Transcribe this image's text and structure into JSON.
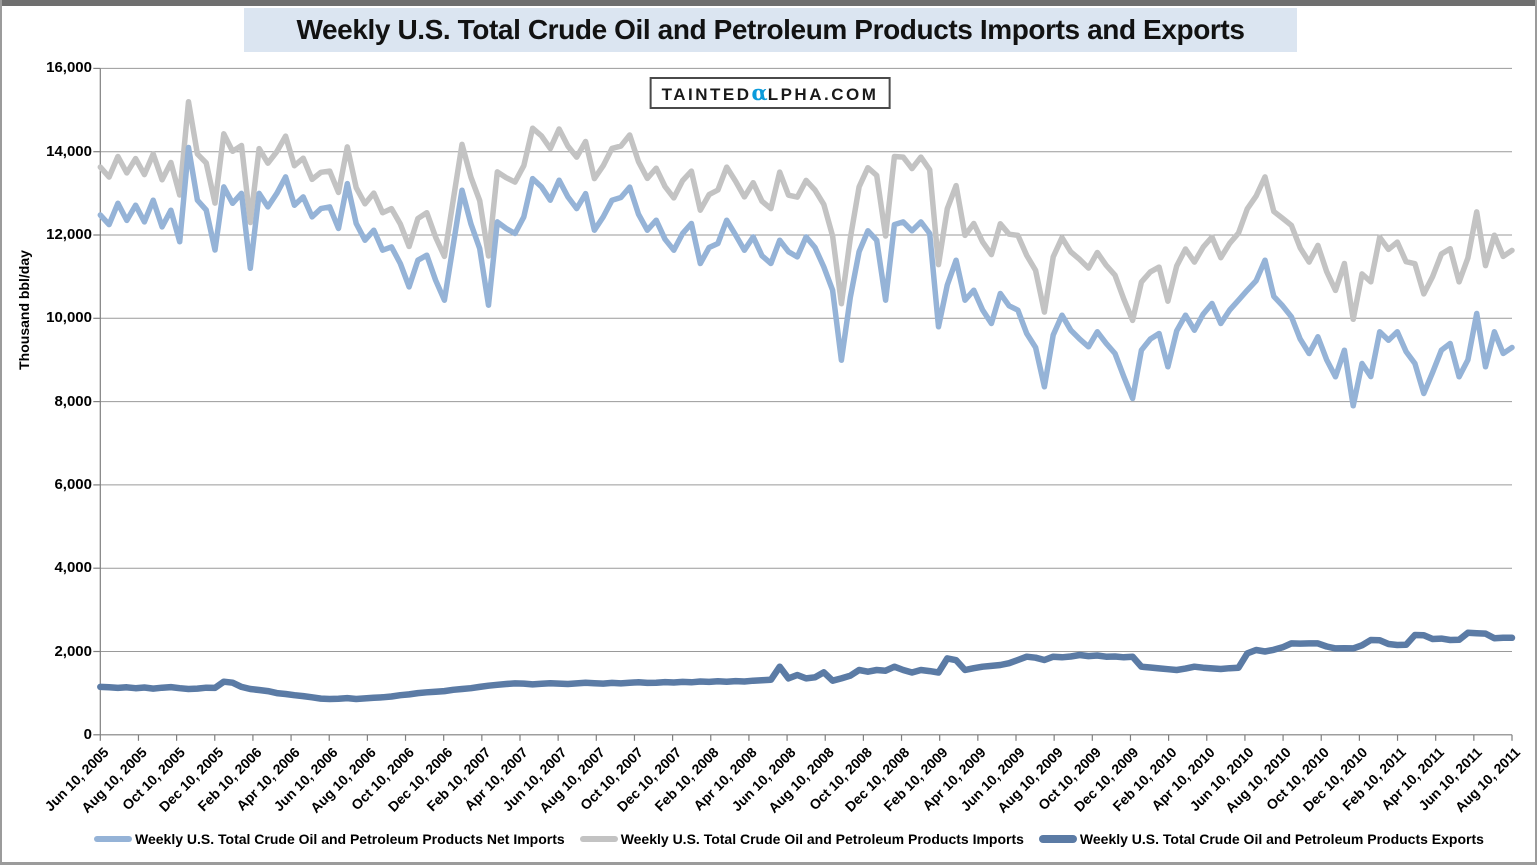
{
  "title": "Weekly U.S. Total Crude Oil and Petroleum Products Imports and Exports",
  "logo": {
    "prefix": "TAINTED",
    "alpha": "α",
    "suffix": "LPHA.COM",
    "alpha_color": "#0b9bdb"
  },
  "colors": {
    "title_band_bg": "#dbe5f1",
    "gridline": "#9a9a9a",
    "axis": "#7f7f7f",
    "frame": "#9b9b9b",
    "background": "#ffffff"
  },
  "chart_data": {
    "type": "line",
    "title": "Weekly U.S. Total Crude Oil and Petroleum Products Imports and Exports",
    "xlabel": "",
    "ylabel": "Thousand bbl/day",
    "ylim": [
      0,
      16000
    ],
    "ytick_step": 2000,
    "yticks": [
      "0",
      "2,000",
      "4,000",
      "6,000",
      "8,000",
      "10,000",
      "12,000",
      "14,000",
      "16,000"
    ],
    "grid": true,
    "legend_position": "bottom",
    "x_start": "Jun 10, 2005",
    "x_end": "Aug 10, 2011",
    "x_sampling": "values estimated every 2 weeks",
    "xtick_labels": [
      "Jun 10, 2005",
      "Aug 10, 2005",
      "Oct 10, 2005",
      "Dec 10, 2005",
      "Feb 10, 2006",
      "Apr 10, 2006",
      "Jun 10, 2006",
      "Aug 10, 2006",
      "Oct 10, 2006",
      "Dec 10, 2006",
      "Feb 10, 2007",
      "Apr 10, 2007",
      "Jun 10, 2007",
      "Aug 10, 2007",
      "Oct 10, 2007",
      "Dec 10, 2007",
      "Feb 10, 2008",
      "Apr 10, 2008",
      "Jun 10, 2008",
      "Aug 10, 2008",
      "Oct 10, 2008",
      "Dec 10, 2008",
      "Feb 10, 2009",
      "Apr 10, 2009",
      "Jun 10, 2009",
      "Aug 10, 2009",
      "Oct 10, 2009",
      "Dec 10, 2009",
      "Feb 10, 2010",
      "Apr 10, 2010",
      "Jun 10, 2010",
      "Aug 10, 2010",
      "Oct 10, 2010",
      "Dec 10, 2010",
      "Feb 10, 2011",
      "Apr 10, 2011",
      "Jun 10, 2011",
      "Aug 10, 2011"
    ],
    "series": [
      {
        "name": "Weekly U.S. Total Crude Oil and Petroleum Products Net Imports",
        "color": "#95b3d7",
        "line_width": 5.5,
        "z": 1,
        "values": [
          12480,
          12250,
          12760,
          12350,
          12715,
          12315,
          12835,
          12195,
          12595,
          11840,
          14100,
          12835,
          12600,
          11640,
          13155,
          12760,
          13000,
          11200,
          13000,
          12675,
          13000,
          13395,
          12715,
          12915,
          12435,
          12635,
          12675,
          12155,
          13235,
          12275,
          11875,
          12115,
          11635,
          11715,
          11315,
          10755,
          11395,
          11515,
          10915,
          10435,
          11755,
          13075,
          12270,
          11675,
          10315,
          12315,
          12155,
          12035,
          12435,
          13355,
          13155,
          12835,
          13315,
          12915,
          12635,
          12995,
          12115,
          12435,
          12835,
          12900,
          13150,
          12500,
          12115,
          12355,
          11900,
          11635,
          12035,
          12275,
          11315,
          11700,
          11795,
          12355,
          12000,
          11635,
          11955,
          11500,
          11315,
          11875,
          11600,
          11475,
          11955,
          11700,
          11235,
          10675,
          8995,
          10500,
          11600,
          12100,
          11875,
          10435,
          12250,
          12315,
          12100,
          12315,
          12035,
          9795,
          10800,
          11395,
          10435,
          10675,
          10200,
          9875,
          10595,
          10300,
          10195,
          9635,
          9300,
          8355,
          9600,
          10075,
          9715,
          9500,
          9315,
          9675,
          9400,
          9155,
          8600,
          8075,
          9235,
          9500,
          9635,
          8835,
          9700,
          10075,
          9715,
          10100,
          10355,
          9875,
          10200,
          10435,
          10675,
          10900,
          11395,
          10525,
          10300,
          10035,
          9500,
          9155,
          9555,
          9000,
          8595,
          9235,
          7900,
          8915,
          8600,
          9675,
          9475,
          9675,
          9200,
          8915,
          8195,
          8700,
          9235,
          9395,
          8595,
          9000,
          10115,
          8835,
          9675,
          9155,
          9300
        ]
      },
      {
        "name": "Weekly U.S. Total Crude Oil and Petroleum Products Imports",
        "color": "#c3c3c3",
        "line_width": 5.5,
        "z": 0,
        "values": [
          13630,
          13390,
          13885,
          13490,
          13835,
          13450,
          13945,
          13325,
          13740,
          12960,
          15200,
          13945,
          13730,
          12765,
          14430,
          14010,
          14150,
          12300,
          14075,
          13725,
          14000,
          14375,
          13665,
          13845,
          13335,
          13505,
          13535,
          13020,
          14115,
          13135,
          12750,
          13005,
          12535,
          12635,
          12265,
          11725,
          12395,
          12535,
          11950,
          11485,
          12835,
          14175,
          13390,
          12825,
          11495,
          13515,
          13375,
          13270,
          13665,
          14565,
          14380,
          14075,
          14545,
          14135,
          13870,
          14245,
          13355,
          13665,
          14080,
          14135,
          14400,
          13760,
          13360,
          13605,
          13165,
          12890,
          13305,
          13535,
          12595,
          12970,
          13080,
          13630,
          13290,
          12915,
          13255,
          12810,
          12635,
          13510,
          12955,
          12910,
          13310,
          13080,
          12735,
          11975,
          10350,
          11920,
          13155,
          13615,
          13430,
          11975,
          13885,
          13870,
          13595,
          13870,
          13565,
          11290,
          12635,
          13185,
          11990,
          12275,
          11835,
          11530,
          12270,
          12020,
          11990,
          11510,
          11150,
          10150,
          11475,
          11935,
          11595,
          11415,
          11205,
          11580,
          11275,
          11035,
          10460,
          9950,
          10870,
          11115,
          11230,
          10410,
          11255,
          11665,
          11350,
          11710,
          11950,
          11455,
          11800,
          12045,
          12630,
          12935,
          13395,
          12565,
          12400,
          12230,
          11690,
          11350,
          11750,
          11120,
          10670,
          11315,
          9975,
          11065,
          10875,
          11945,
          11655,
          11830,
          11360,
          11310,
          10585,
          11000,
          11545,
          11670,
          10875,
          11450,
          12555,
          11265,
          11995,
          11485,
          11630
        ]
      },
      {
        "name": "Weekly U.S. Total Crude Oil and Petroleum Products Exports",
        "color": "#5b7ba5",
        "line_width": 6.5,
        "z": 2,
        "values": [
          1150,
          1140,
          1125,
          1140,
          1120,
          1135,
          1110,
          1130,
          1145,
          1120,
          1100,
          1110,
          1130,
          1125,
          1275,
          1250,
          1150,
          1100,
          1075,
          1050,
          1000,
          980,
          950,
          930,
          900,
          870,
          860,
          865,
          880,
          860,
          875,
          890,
          900,
          920,
          950,
          970,
          1000,
          1020,
          1035,
          1050,
          1080,
          1100,
          1120,
          1150,
          1180,
          1200,
          1220,
          1235,
          1230,
          1210,
          1225,
          1240,
          1230,
          1220,
          1235,
          1250,
          1240,
          1230,
          1245,
          1235,
          1250,
          1260,
          1245,
          1250,
          1265,
          1255,
          1270,
          1260,
          1280,
          1270,
          1285,
          1275,
          1290,
          1280,
          1300,
          1310,
          1320,
          1635,
          1355,
          1435,
          1355,
          1380,
          1500,
          1300,
          1355,
          1420,
          1555,
          1515,
          1555,
          1540,
          1635,
          1555,
          1495,
          1555,
          1530,
          1495,
          1835,
          1790,
          1555,
          1600,
          1635,
          1655,
          1675,
          1720,
          1795,
          1875,
          1850,
          1795,
          1875,
          1860,
          1880,
          1915,
          1890,
          1905,
          1875,
          1880,
          1860,
          1875,
          1635,
          1615,
          1595,
          1575,
          1555,
          1590,
          1635,
          1610,
          1595,
          1580,
          1600,
          1610,
          1955,
          2035,
          2000,
          2040,
          2100,
          2195,
          2190,
          2195,
          2195,
          2120,
          2075,
          2080,
          2075,
          2150,
          2275,
          2270,
          2180,
          2155,
          2160,
          2395,
          2390,
          2300,
          2310,
          2275,
          2280,
          2450,
          2440,
          2430,
          2320,
          2330,
          2330
        ]
      }
    ]
  }
}
